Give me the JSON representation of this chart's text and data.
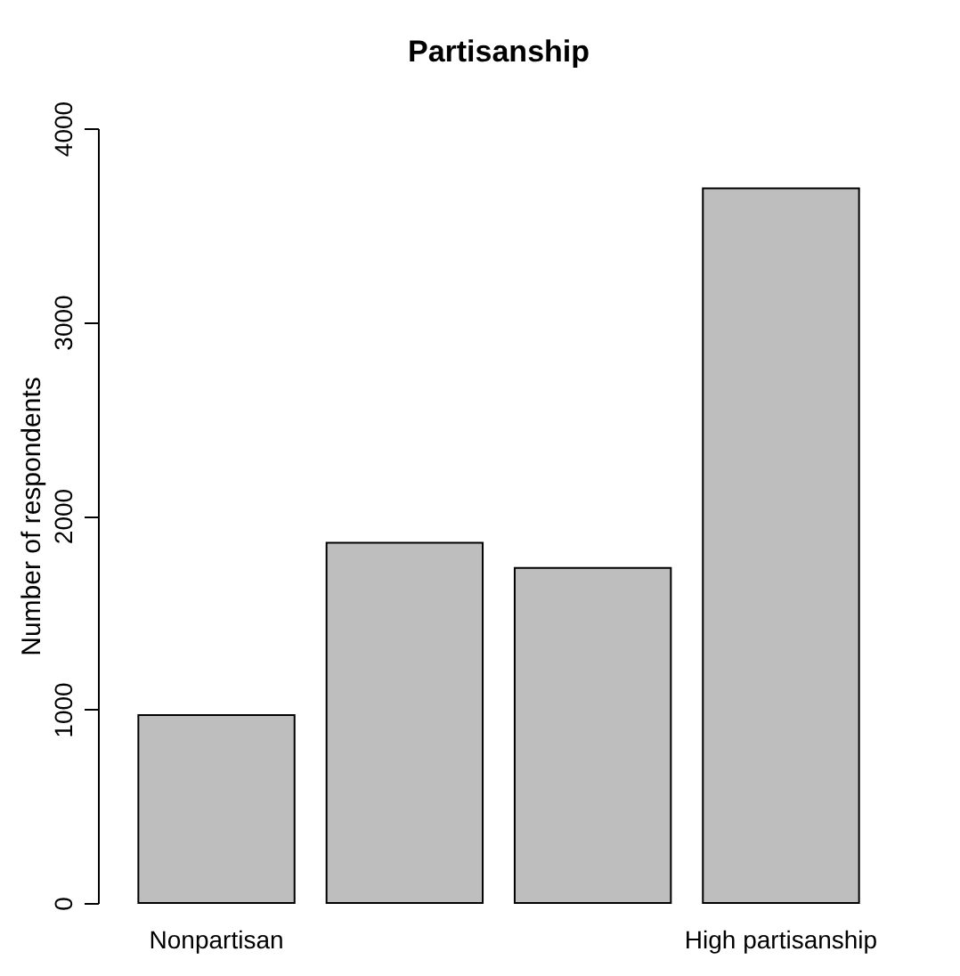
{
  "chart_data": {
    "type": "bar",
    "title": "Partisanship",
    "ylabel": "Number of respondents",
    "categories": [
      "Nonpartisan",
      null,
      null,
      "High partisanship"
    ],
    "values": [
      970,
      1860,
      1730,
      3690
    ],
    "color": "#bebebe",
    "ylim": [
      0,
      4000
    ],
    "yticks": [
      0,
      1000,
      2000,
      3000,
      4000
    ],
    "grid": false
  }
}
